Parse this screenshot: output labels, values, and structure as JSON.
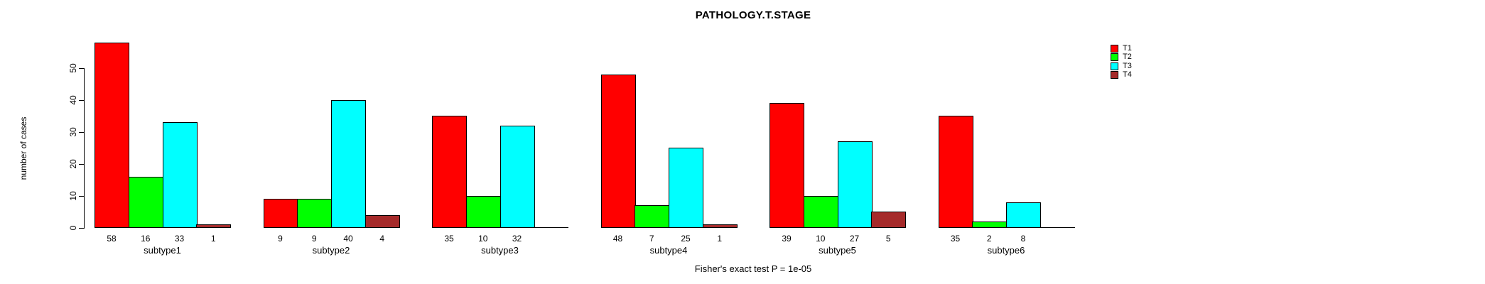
{
  "chart_data": {
    "type": "bar",
    "title": "PATHOLOGY.T.STAGE",
    "ylabel": "number of cases",
    "xlabel": "",
    "categories": [
      "subtype1",
      "subtype2",
      "subtype3",
      "subtype4",
      "subtype5",
      "subtype6"
    ],
    "series": [
      {
        "name": "T1",
        "color": "#FF0000",
        "values": [
          58,
          9,
          35,
          48,
          39,
          35
        ]
      },
      {
        "name": "T2",
        "color": "#00FF00",
        "values": [
          16,
          9,
          10,
          7,
          10,
          2
        ]
      },
      {
        "name": "T3",
        "color": "#00FFFF",
        "values": [
          33,
          40,
          32,
          25,
          27,
          8
        ]
      },
      {
        "name": "T4",
        "color": "#A52A2A",
        "values": [
          1,
          4,
          0,
          1,
          5,
          0
        ]
      }
    ],
    "yticks": [
      0,
      10,
      20,
      30,
      40,
      50
    ],
    "ylim": [
      0,
      58
    ],
    "grid": false,
    "legend_position": "right",
    "bar_value_labels_shown": true,
    "footnote": "Fisher's exact test P = 1e-05"
  }
}
